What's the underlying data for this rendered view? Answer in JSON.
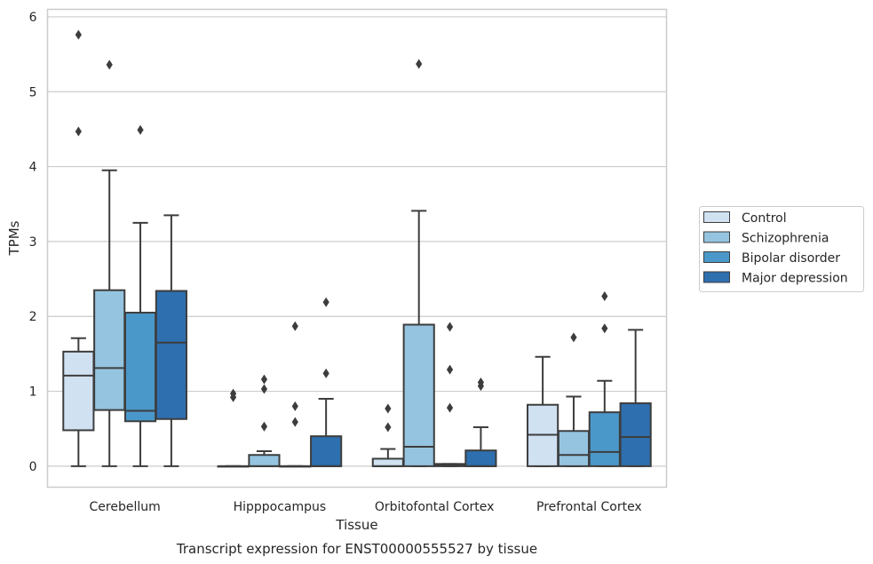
{
  "chart_data": {
    "type": "box",
    "title": "",
    "caption": "Transcript expression for ENST00000555527 by tissue",
    "xlabel": "Tissue",
    "ylabel": "TPMs",
    "ylim": [
      -0.28,
      6.1
    ],
    "yticks": [
      0,
      1,
      2,
      3,
      4,
      5,
      6
    ],
    "grid": true,
    "legend_position": "right",
    "categories": [
      "Cerebellum",
      "Hipppocampus",
      "Orbitofontal Cortex",
      "Prefrontal Cortex"
    ],
    "series": [
      {
        "name": "Control",
        "color": "#d0e1f2",
        "boxes": [
          {
            "whislo": 0,
            "q1": 0.48,
            "med": 1.21,
            "q3": 1.53,
            "whishi": 1.71,
            "fliers": [
              4.47,
              5.76
            ]
          },
          {
            "whislo": 0,
            "q1": 0,
            "med": 0,
            "q3": 0,
            "whishi": 0,
            "fliers": [
              0.92,
              0.97
            ]
          },
          {
            "whislo": 0,
            "q1": 0,
            "med": 0,
            "q3": 0.1,
            "whishi": 0.23,
            "fliers": [
              0.52,
              0.77
            ]
          },
          {
            "whislo": 0,
            "q1": 0,
            "med": 0.42,
            "q3": 0.82,
            "whishi": 1.46,
            "fliers": []
          }
        ]
      },
      {
        "name": "Schizophrenia",
        "color": "#94c4df",
        "boxes": [
          {
            "whislo": 0,
            "q1": 0.75,
            "med": 1.31,
            "q3": 2.35,
            "whishi": 3.95,
            "fliers": [
              5.36
            ]
          },
          {
            "whislo": 0,
            "q1": 0,
            "med": 0,
            "q3": 0.15,
            "whishi": 0.2,
            "fliers": [
              0.53,
              1.03,
              1.16
            ]
          },
          {
            "whislo": 0,
            "q1": 0,
            "med": 0.26,
            "q3": 1.89,
            "whishi": 3.41,
            "fliers": [
              5.37
            ]
          },
          {
            "whislo": 0,
            "q1": 0,
            "med": 0.15,
            "q3": 0.47,
            "whishi": 0.93,
            "fliers": [
              1.72
            ]
          }
        ]
      },
      {
        "name": "Bipolar disorder",
        "color": "#4a98c9",
        "boxes": [
          {
            "whislo": 0,
            "q1": 0.6,
            "med": 0.74,
            "q3": 2.05,
            "whishi": 3.25,
            "fliers": [
              4.49
            ]
          },
          {
            "whislo": 0,
            "q1": 0,
            "med": 0,
            "q3": 0,
            "whishi": 0,
            "fliers": [
              0.59,
              0.8,
              1.87
            ]
          },
          {
            "whislo": 0,
            "q1": 0,
            "med": 0.02,
            "q3": 0.03,
            "whishi": 0.03,
            "fliers": [
              0.78,
              1.29,
              1.86
            ]
          },
          {
            "whislo": 0,
            "q1": 0,
            "med": 0.19,
            "q3": 0.72,
            "whishi": 1.14,
            "fliers": [
              1.84,
              2.27
            ]
          }
        ]
      },
      {
        "name": "Major depression",
        "color": "#2e6faf",
        "boxes": [
          {
            "whislo": 0,
            "q1": 0.63,
            "med": 1.65,
            "q3": 2.34,
            "whishi": 3.35,
            "fliers": []
          },
          {
            "whislo": 0,
            "q1": 0,
            "med": 0,
            "q3": 0.4,
            "whishi": 0.9,
            "fliers": [
              1.24,
              2.19
            ]
          },
          {
            "whislo": 0,
            "q1": 0,
            "med": 0,
            "q3": 0.21,
            "whishi": 0.52,
            "fliers": [
              1.07,
              1.12
            ]
          },
          {
            "whislo": 0,
            "q1": 0,
            "med": 0.39,
            "q3": 0.84,
            "whishi": 1.82,
            "fliers": []
          }
        ]
      }
    ]
  }
}
